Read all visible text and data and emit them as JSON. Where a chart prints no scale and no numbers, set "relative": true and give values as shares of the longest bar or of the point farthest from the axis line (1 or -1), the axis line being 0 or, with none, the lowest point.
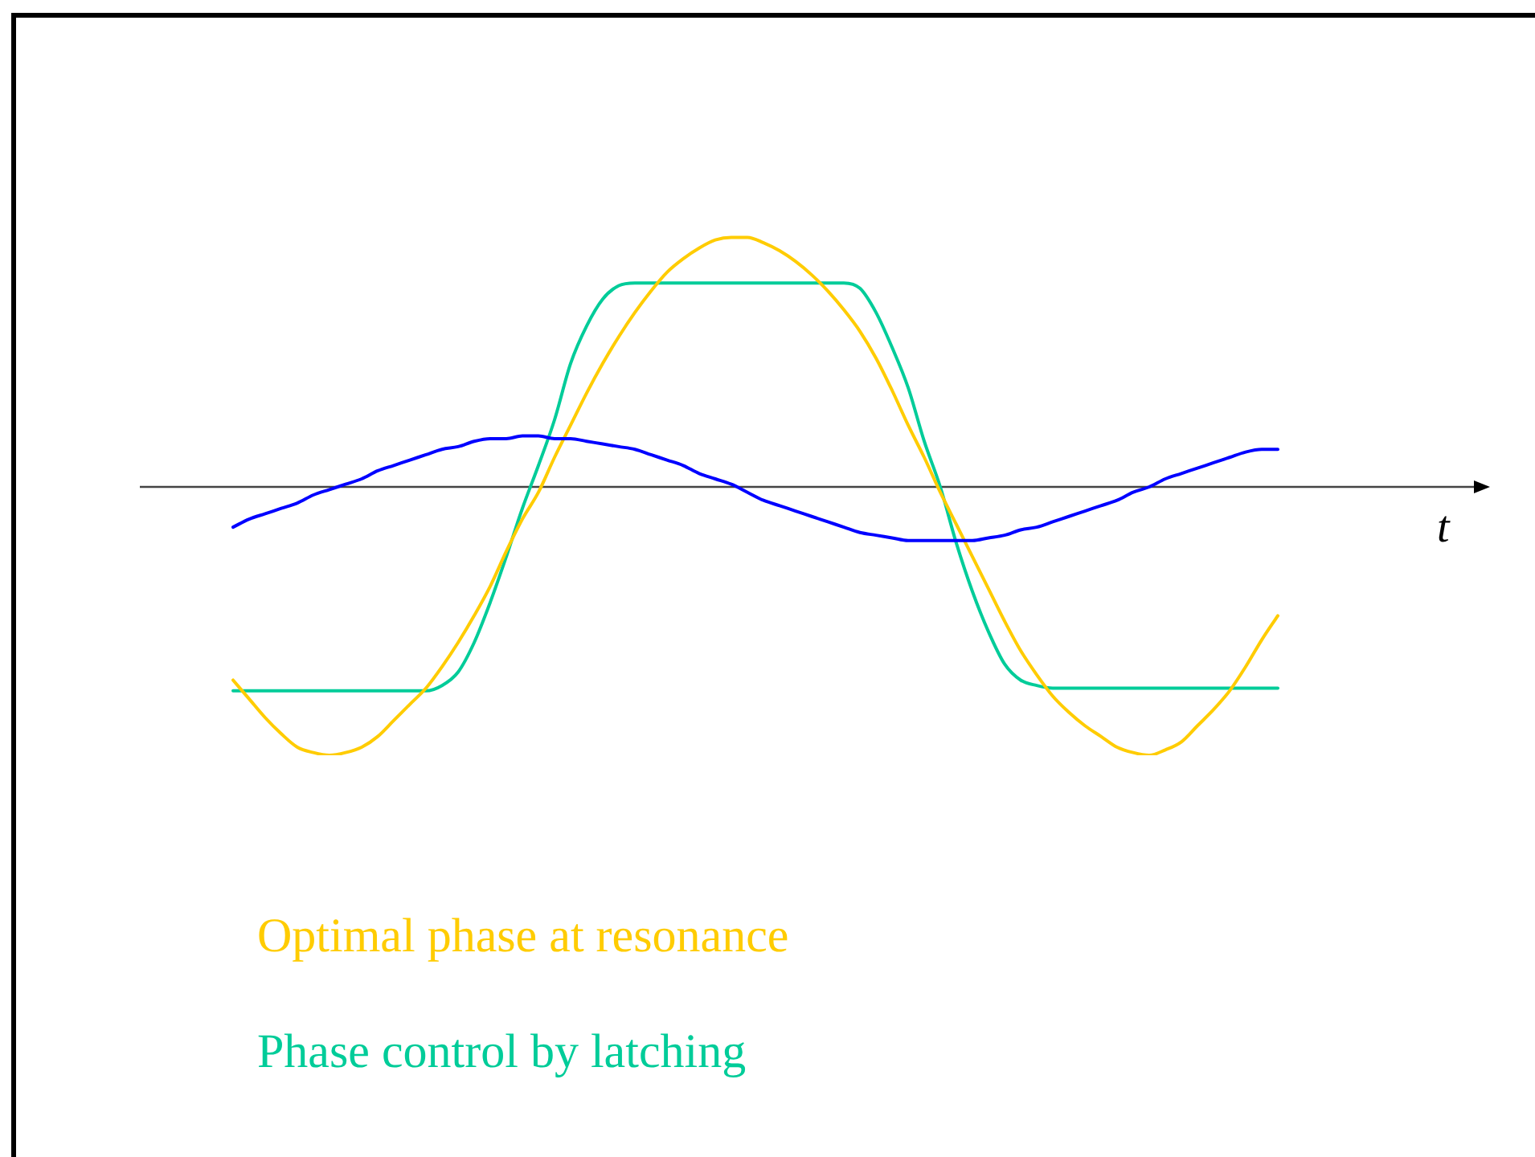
{
  "chart_data": {
    "type": "line",
    "relative": true,
    "xlabel": "t",
    "legend": "bottom left",
    "categories": [
      null,
      null,
      null,
      null,
      null,
      null,
      null,
      null,
      null,
      null,
      null,
      null,
      null,
      null,
      null,
      null,
      null,
      null,
      null,
      null,
      null,
      null,
      null,
      null,
      null,
      null,
      null,
      null,
      null,
      null,
      null,
      null,
      null,
      null,
      null,
      null,
      null,
      null,
      null,
      null,
      null,
      null,
      null,
      null,
      null,
      null,
      null,
      null,
      null,
      null,
      null,
      null,
      null,
      null,
      null,
      null,
      null,
      null,
      null,
      null,
      null,
      null,
      null,
      null,
      null,
      null
    ],
    "series": [
      {
        "color": "#0000ff",
        "values": [
          -0.15,
          -0.12,
          -0.1,
          -0.08,
          -0.06,
          -0.03,
          -0.01,
          0.01,
          0.03,
          0.06,
          0.08,
          0.1,
          0.12,
          0.14,
          0.15,
          0.17,
          0.18,
          0.18,
          0.19,
          0.19,
          0.18,
          0.18,
          0.17,
          0.16,
          0.15,
          0.14,
          0.12,
          0.1,
          0.08,
          0.05,
          0.03,
          0.01,
          -0.02,
          -0.05,
          -0.07,
          -0.09,
          -0.11,
          -0.13,
          -0.15,
          -0.17,
          -0.18,
          -0.19,
          -0.2,
          -0.2,
          -0.2,
          -0.2,
          -0.2,
          -0.19,
          -0.18,
          -0.16,
          -0.15,
          -0.13,
          -0.11,
          -0.09,
          -0.07,
          -0.05,
          -0.02,
          0.0,
          0.03,
          0.05,
          0.07,
          0.09,
          0.11,
          0.13,
          0.14,
          0.14
        ]
      },
      {
        "name": "Optimal phase at resonance",
        "color": "#ffcc00",
        "values": [
          -0.72,
          -0.79,
          -0.86,
          -0.92,
          -0.97,
          -0.99,
          -1,
          -0.99,
          -0.97,
          -0.93,
          -0.87,
          -0.81,
          -0.75,
          -0.67,
          -0.58,
          -0.48,
          -0.37,
          -0.24,
          -0.12,
          -0.02,
          0.11,
          0.23,
          0.35,
          0.46,
          0.56,
          0.65,
          0.73,
          0.8,
          0.85,
          0.89,
          0.92,
          0.93,
          0.93,
          0.91,
          0.88,
          0.84,
          0.79,
          0.73,
          0.66,
          0.58,
          0.48,
          0.36,
          0.23,
          0.11,
          -0.02,
          -0.14,
          -0.26,
          -0.38,
          -0.5,
          -0.61,
          -0.7,
          -0.78,
          -0.84,
          -0.89,
          -0.93,
          -0.97,
          -0.99,
          -1,
          -0.98,
          -0.95,
          -0.89,
          -0.83,
          -0.76,
          -0.67,
          -0.57,
          -0.48
        ]
      },
      {
        "name": "Phase control by latching",
        "color": "#00cc99",
        "values": [
          -0.76,
          -0.76,
          -0.76,
          -0.76,
          -0.76,
          -0.76,
          -0.76,
          -0.76,
          -0.76,
          -0.76,
          -0.76,
          -0.76,
          -0.76,
          -0.74,
          -0.69,
          -0.58,
          -0.43,
          -0.26,
          -0.08,
          0.08,
          0.25,
          0.46,
          0.6,
          0.7,
          0.75,
          0.76,
          0.76,
          0.76,
          0.76,
          0.76,
          0.76,
          0.76,
          0.76,
          0.76,
          0.76,
          0.76,
          0.76,
          0.76,
          0.76,
          0.74,
          0.65,
          0.52,
          0.37,
          0.17,
          0.0,
          -0.21,
          -0.39,
          -0.54,
          -0.66,
          -0.72,
          -0.74,
          -0.75,
          -0.75,
          -0.75,
          -0.75,
          -0.75,
          -0.75,
          -0.75,
          -0.75,
          -0.75,
          -0.75,
          -0.75,
          -0.75,
          -0.75,
          -0.75,
          -0.75
        ]
      }
    ]
  }
}
